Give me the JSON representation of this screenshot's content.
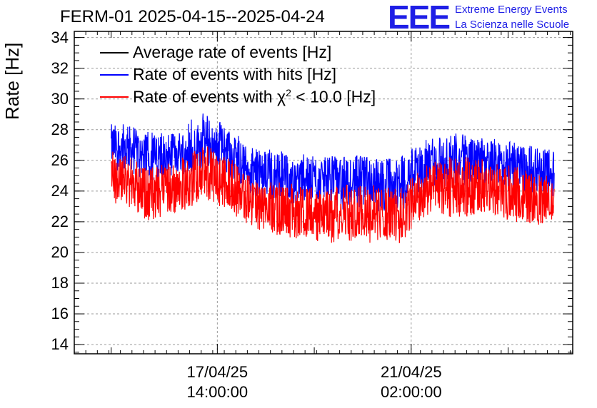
{
  "header": {
    "title": "FERM-01 2025-04-15--2025-04-24",
    "logo": "EEE",
    "logo_line1": "Extreme Energy Events",
    "logo_line2": "La Scienza nelle Scuole"
  },
  "colors": {
    "avg": "#000000",
    "hits": "#0000ff",
    "chi2": "#ff0000",
    "logo": "#1f1fe6",
    "grid": "#9a9a9a"
  },
  "legend": {
    "avg": "Average rate of events [Hz]",
    "hits": "Rate of events with hits [Hz]",
    "chi2_prefix": "Rate of events with ",
    "chi2_symbol": "χ",
    "chi2_exp": "2",
    "chi2_suffix": " < 10.0 [Hz]"
  },
  "chart_data": {
    "type": "line",
    "ylabel": "Rate [Hz]",
    "ylim": [
      13.4,
      34.4
    ],
    "yticks": [
      "14",
      "16",
      "18",
      "20",
      "22",
      "24",
      "26",
      "28",
      "30",
      "32",
      "34"
    ],
    "xticks": [
      {
        "date": "17/04/25",
        "time": "14:00:00"
      },
      {
        "date": "21/04/25",
        "time": "02:00:00"
      }
    ],
    "grid": true,
    "legend_position": "top-left",
    "x_range": [
      "2025-04-15T00:00:00",
      "2025-04-24T00:00:00"
    ],
    "series": [
      {
        "name": "Rate of events with hits [Hz]",
        "color": "#0000ff",
        "x": [
          "2025-04-15T16:00",
          "2025-04-16T00:00",
          "2025-04-16T08:00",
          "2025-04-16T16:00",
          "2025-04-17T00:00",
          "2025-04-17T08:00",
          "2025-04-17T16:00",
          "2025-04-18T00:00",
          "2025-04-18T08:00",
          "2025-04-18T16:00",
          "2025-04-19T00:00",
          "2025-04-19T08:00",
          "2025-04-19T16:00",
          "2025-04-20T00:00",
          "2025-04-20T08:00",
          "2025-04-20T16:00",
          "2025-04-21T00:00",
          "2025-04-21T08:00",
          "2025-04-21T16:00",
          "2025-04-22T00:00",
          "2025-04-22T08:00",
          "2025-04-22T16:00",
          "2025-04-23T00:00",
          "2025-04-23T08:00"
        ],
        "mean": [
          27.0,
          26.8,
          26.2,
          26.3,
          26.8,
          27.2,
          26.6,
          25.6,
          25.0,
          25.0,
          24.8,
          24.6,
          24.8,
          24.8,
          24.6,
          24.4,
          25.6,
          25.8,
          26.0,
          26.0,
          25.8,
          25.6,
          25.4,
          25.0
        ],
        "min": [
          25.4,
          25.0,
          24.6,
          24.8,
          25.2,
          25.6,
          25.0,
          24.0,
          23.2,
          23.2,
          23.0,
          22.6,
          22.8,
          22.8,
          22.6,
          22.6,
          23.8,
          24.2,
          24.2,
          24.4,
          24.2,
          24.0,
          23.8,
          23.4
        ],
        "max": [
          28.6,
          28.4,
          27.8,
          28.0,
          28.6,
          29.2,
          28.2,
          27.2,
          26.8,
          26.6,
          26.4,
          26.2,
          26.4,
          26.4,
          26.2,
          26.2,
          27.2,
          27.6,
          27.8,
          27.6,
          27.4,
          27.2,
          27.0,
          26.6
        ]
      },
      {
        "name": "Rate of events with χ2 < 10.0 [Hz]",
        "color": "#ff0000",
        "x": [
          "2025-04-15T16:00",
          "2025-04-16T00:00",
          "2025-04-16T08:00",
          "2025-04-16T16:00",
          "2025-04-17T00:00",
          "2025-04-17T08:00",
          "2025-04-17T16:00",
          "2025-04-18T00:00",
          "2025-04-18T08:00",
          "2025-04-18T16:00",
          "2025-04-19T00:00",
          "2025-04-19T08:00",
          "2025-04-19T16:00",
          "2025-04-20T00:00",
          "2025-04-20T08:00",
          "2025-04-20T16:00",
          "2025-04-21T00:00",
          "2025-04-21T08:00",
          "2025-04-21T16:00",
          "2025-04-22T00:00",
          "2025-04-22T08:00",
          "2025-04-22T16:00",
          "2025-04-23T00:00",
          "2025-04-23T08:00"
        ],
        "mean": [
          25.0,
          24.6,
          24.0,
          24.2,
          24.8,
          25.2,
          24.6,
          23.6,
          22.8,
          22.8,
          22.6,
          22.4,
          22.8,
          22.6,
          22.6,
          22.6,
          23.8,
          24.2,
          24.2,
          24.2,
          24.0,
          23.8,
          23.6,
          23.2
        ],
        "min": [
          23.0,
          22.8,
          22.0,
          22.4,
          22.8,
          23.4,
          22.8,
          21.8,
          21.2,
          21.0,
          20.6,
          20.4,
          20.8,
          20.6,
          20.6,
          20.6,
          22.0,
          22.2,
          22.2,
          22.4,
          22.2,
          22.0,
          21.8,
          21.8
        ],
        "max": [
          26.6,
          26.2,
          25.6,
          25.8,
          26.6,
          27.0,
          26.4,
          25.2,
          24.6,
          24.6,
          24.4,
          24.0,
          24.6,
          24.4,
          24.4,
          24.4,
          25.6,
          26.0,
          26.4,
          26.2,
          25.8,
          25.6,
          25.4,
          24.8
        ]
      }
    ]
  }
}
